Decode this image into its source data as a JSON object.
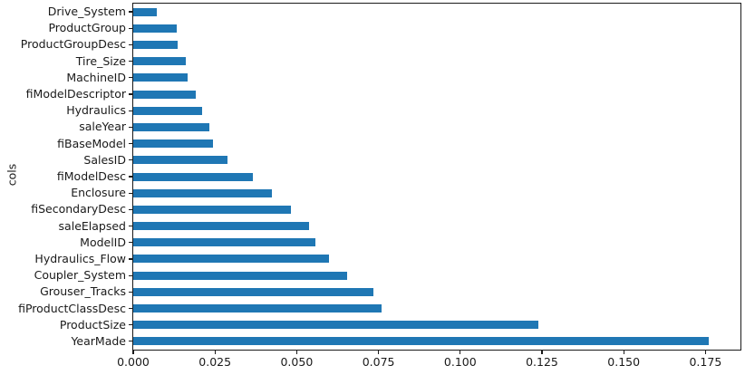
{
  "figure": {
    "colors": {
      "bar": "#1f77b4",
      "spine": "#1a1a1a",
      "tick": "#1a1a1a",
      "text": "#1a1a1a",
      "background": "#ffffff"
    }
  },
  "chart_data": {
    "type": "bar",
    "orientation": "horizontal",
    "title": "",
    "xlabel": "",
    "ylabel": "cols",
    "grid": false,
    "legend": false,
    "xlim": [
      0,
      0.1857
    ],
    "x_tick_labels": [
      "0.000",
      "0.025",
      "0.050",
      "0.075",
      "0.100",
      "0.125",
      "0.150",
      "0.175"
    ],
    "categories": [
      "Drive_System",
      "ProductGroup",
      "ProductGroupDesc",
      "Tire_Size",
      "MachineID",
      "fiModelDescriptor",
      "Hydraulics",
      "saleYear",
      "fiBaseModel",
      "SalesID",
      "fiModelDesc",
      "Enclosure",
      "fiSecondaryDesc",
      "saleElapsed",
      "ModelID",
      "Hydraulics_Flow",
      "Coupler_System",
      "Grouser_Tracks",
      "fiProductClassDesc",
      "ProductSize",
      "YearMade"
    ],
    "values": [
      0.0073,
      0.0132,
      0.0135,
      0.0162,
      0.0165,
      0.019,
      0.0211,
      0.0234,
      0.0243,
      0.0289,
      0.0366,
      0.0425,
      0.0482,
      0.0537,
      0.0558,
      0.06,
      0.0654,
      0.0734,
      0.076,
      0.124,
      0.1761
    ]
  }
}
